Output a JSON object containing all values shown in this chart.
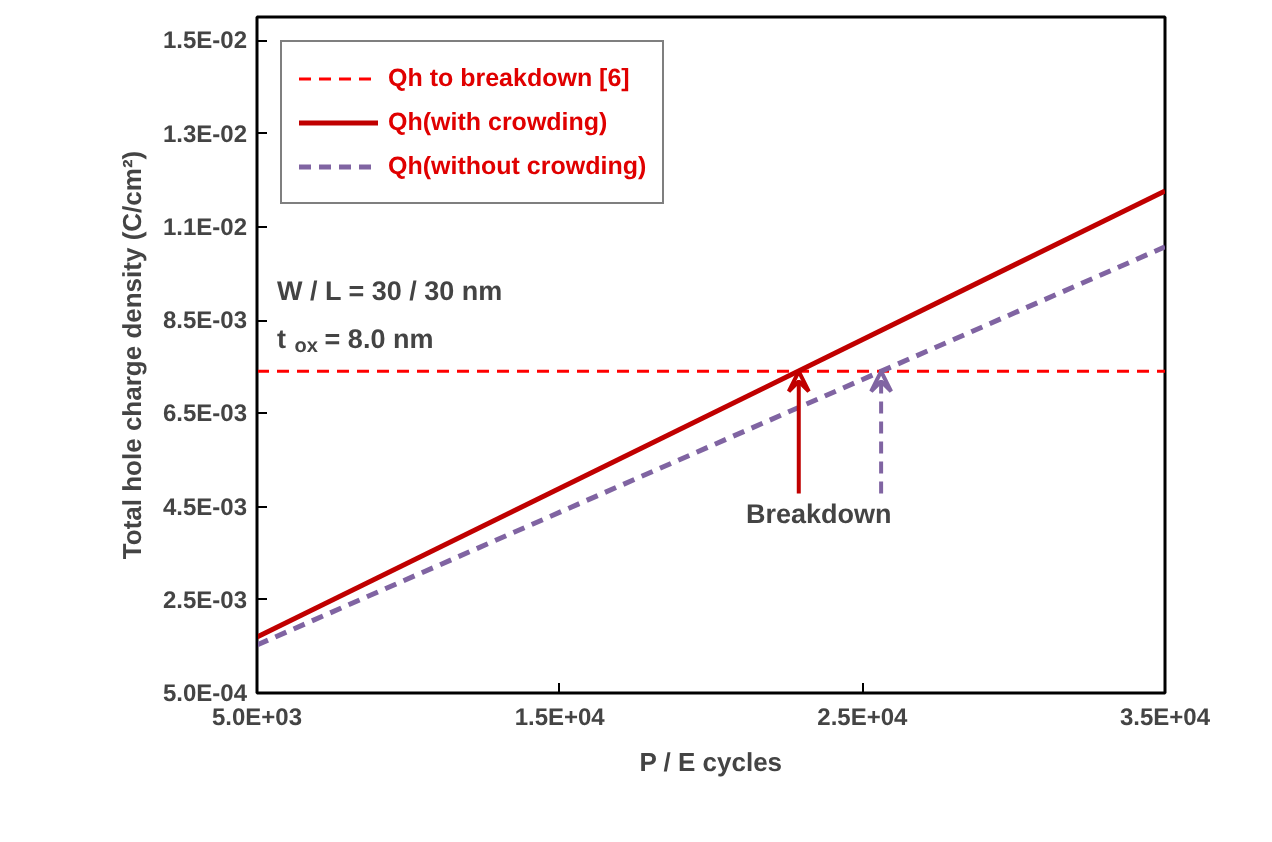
{
  "chart_data": {
    "type": "line",
    "xlabel": "P / E cycles",
    "ylabel": "Total hole charge density (C/cm²)",
    "xlim": [
      5000,
      35000
    ],
    "xticks": [
      {
        "value": 5000,
        "label": "5.0E+03"
      },
      {
        "value": 15000,
        "label": "1.5E+04"
      },
      {
        "value": 25000,
        "label": "2.5E+04"
      },
      {
        "value": 35000,
        "label": "3.5E+04"
      }
    ],
    "ylim": [
      0.0005,
      0.015
    ],
    "yticks": [
      {
        "value": 0.0005,
        "label": "5.0E-04"
      },
      {
        "value": 0.0025,
        "label": "2.5E-03"
      },
      {
        "value": 0.0045,
        "label": "4.5E-03"
      },
      {
        "value": 0.0065,
        "label": "6.5E-03"
      },
      {
        "value": 0.0085,
        "label": "8.5E-03"
      },
      {
        "value": 0.0105,
        "label": "1.1E-02"
      },
      {
        "value": 0.0125,
        "label": "1.3E-02"
      },
      {
        "value": 0.0145,
        "label": "1.5E-02"
      }
    ],
    "grid": false,
    "legend": "top left",
    "marker": "none",
    "ref_lines": [
      {
        "axis": "y",
        "value": 0.0074,
        "label": "Qh to breakdown [6]",
        "color": "#ff0000",
        "line_style": "dashed"
      }
    ],
    "x": [
      5000,
      35000
    ],
    "series": [
      {
        "name": "Qh(with crowding)",
        "color": "#c00000",
        "line_style": "solid",
        "values": [
          0.0017,
          0.01127
        ]
      },
      {
        "name": "Qh(without crowding)",
        "color": "#8064a2",
        "line_style": "dashed",
        "values": [
          0.00153,
          0.01007
        ]
      }
    ],
    "annotations": [
      {
        "text": "Breakdown",
        "x": 22900,
        "y": 0.0074
      },
      "W / L = 30 / 30 nm",
      "t$_{ox}$ = 8.0 nm"
    ]
  }
}
